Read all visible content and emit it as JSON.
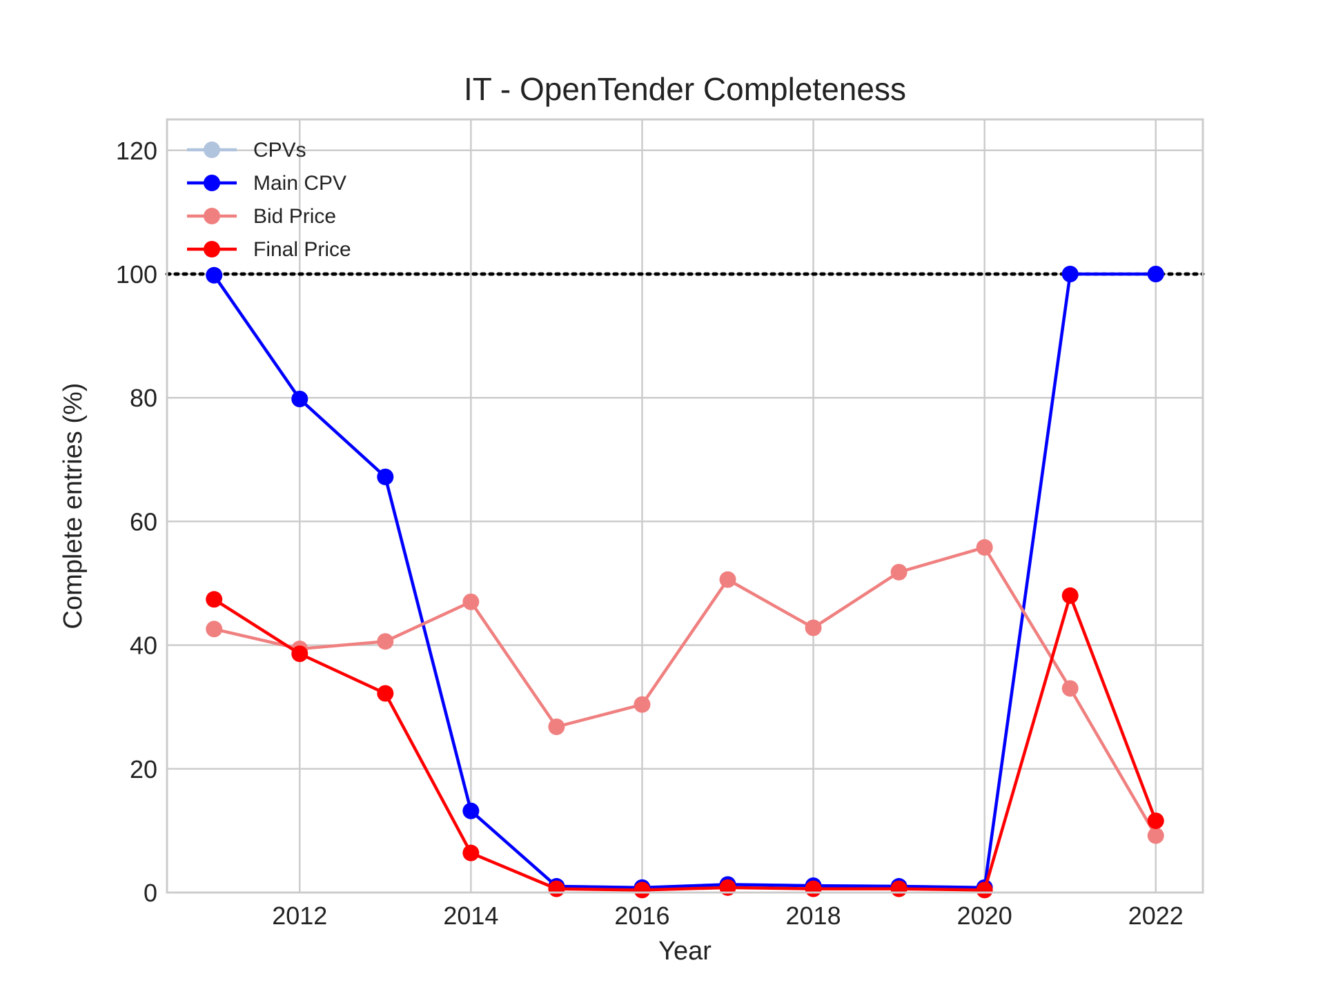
{
  "chart_data": {
    "type": "line",
    "title": "IT - OpenTender Completeness",
    "xlabel": "Year",
    "ylabel": "Complete entries (%)",
    "xlim": [
      2010.45,
      2022.55
    ],
    "ylim": [
      0,
      125
    ],
    "x_ticks": [
      2012,
      2014,
      2016,
      2018,
      2020,
      2022
    ],
    "y_ticks": [
      0,
      20,
      40,
      60,
      80,
      100,
      120
    ],
    "grid": true,
    "legend_position": "top-left",
    "reference_line": {
      "y": 100,
      "style": "dotted",
      "color": "#000000"
    },
    "x": [
      2011,
      2012,
      2013,
      2014,
      2015,
      2016,
      2017,
      2018,
      2019,
      2020,
      2021,
      2022
    ],
    "series": [
      {
        "name": "CPVs",
        "color": "#b0c4de",
        "values": [
          99.8,
          79.8,
          67.2,
          13.2,
          1.0,
          0.8,
          1.3,
          1.1,
          1.0,
          0.8,
          100,
          100
        ]
      },
      {
        "name": "Main CPV",
        "color": "#0000ff",
        "values": [
          99.8,
          79.8,
          67.2,
          13.2,
          1.0,
          0.8,
          1.3,
          1.1,
          1.0,
          0.8,
          100,
          100
        ]
      },
      {
        "name": "Bid Price",
        "color": "#f08080",
        "values": [
          42.6,
          39.4,
          40.6,
          47.0,
          26.8,
          30.4,
          50.6,
          42.8,
          51.8,
          55.8,
          33.0,
          9.2
        ]
      },
      {
        "name": "Final Price",
        "color": "#ff0000",
        "values": [
          47.4,
          38.6,
          32.2,
          6.4,
          0.6,
          0.4,
          0.8,
          0.6,
          0.6,
          0.4,
          48.0,
          11.6
        ]
      }
    ]
  }
}
